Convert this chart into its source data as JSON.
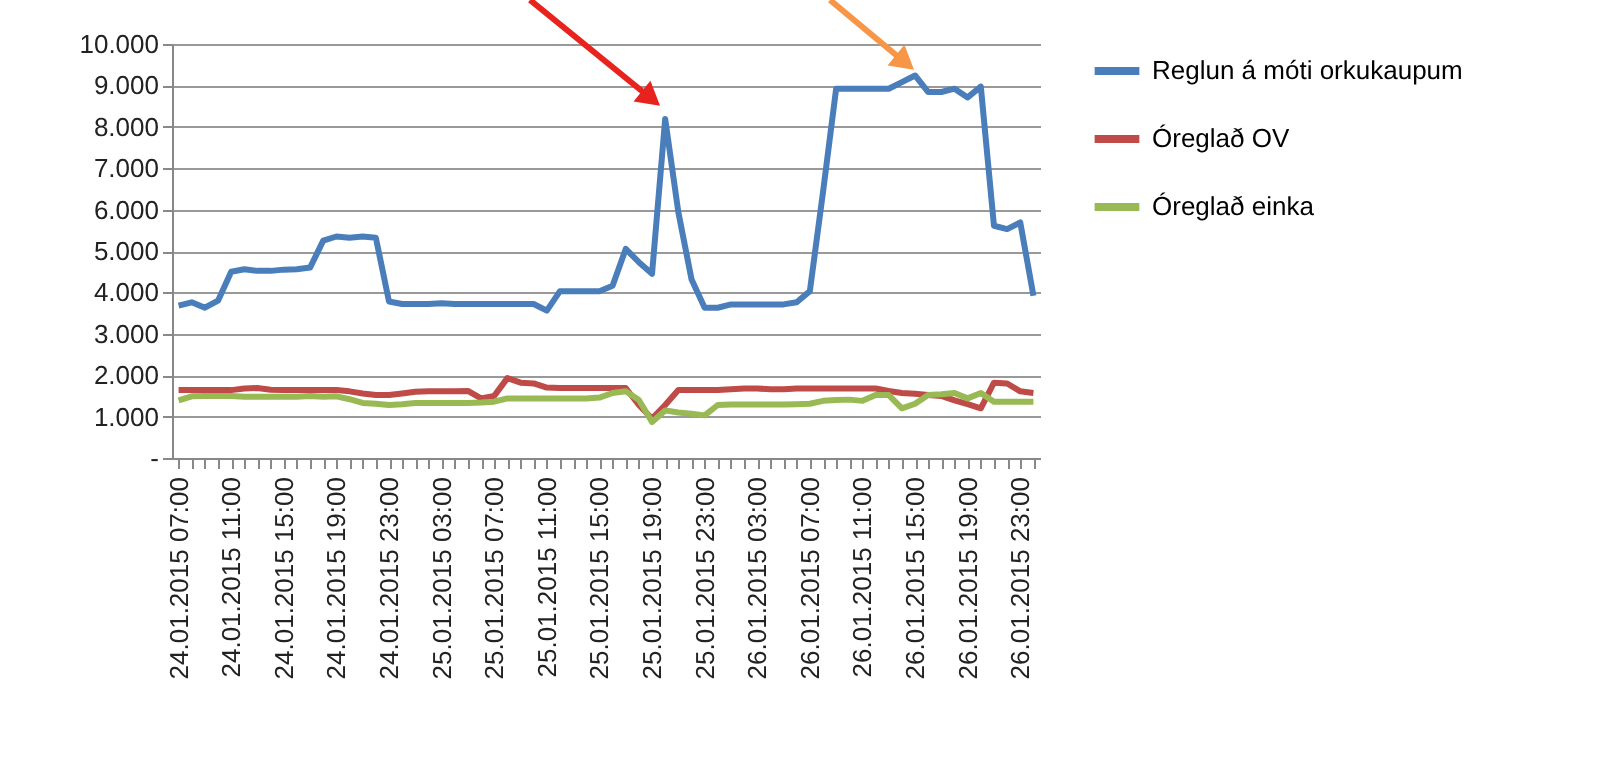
{
  "chart_data": {
    "type": "line",
    "categories": [
      "24.01.2015 07:00",
      null,
      null,
      null,
      "24.01.2015 11:00",
      null,
      null,
      null,
      "24.01.2015 15:00",
      null,
      null,
      null,
      "24.01.2015 19:00",
      null,
      null,
      null,
      "24.01.2015 23:00",
      null,
      null,
      null,
      "25.01.2015 03:00",
      null,
      null,
      null,
      "25.01.2015 07:00",
      null,
      null,
      null,
      "25.01.2015 11:00",
      null,
      null,
      null,
      "25.01.2015 15:00",
      null,
      null,
      null,
      "25.01.2015 19:00",
      null,
      null,
      null,
      "25.01.2015 23:00",
      null,
      null,
      null,
      "26.01.2015 03:00",
      null,
      null,
      null,
      "26.01.2015 07:00",
      null,
      null,
      null,
      "26.01.2015 11:00",
      null,
      null,
      null,
      "26.01.2015 15:00",
      null,
      null,
      null,
      "26.01.2015 19:00",
      null,
      null,
      null,
      "26.01.2015 23:00",
      null
    ],
    "series": [
      {
        "name": "Reglun á móti orkukaupum",
        "color": "#4a7ebb",
        "values": [
          3680,
          3760,
          3630,
          3800,
          4500,
          4560,
          4520,
          4520,
          4550,
          4560,
          4600,
          5250,
          5350,
          5320,
          5350,
          5320,
          3780,
          3720,
          3720,
          3720,
          3740,
          3720,
          3720,
          3720,
          3720,
          3720,
          3720,
          3720,
          3560,
          4030,
          4030,
          4030,
          4030,
          4160,
          5050,
          4730,
          4450,
          8190,
          5940,
          4320,
          3630,
          3630,
          3710,
          3710,
          3710,
          3710,
          3710,
          3760,
          4030,
          6420,
          8920,
          8920,
          8920,
          8920,
          8920,
          9080,
          9240,
          8840,
          8840,
          8920,
          8710,
          8970,
          5610,
          5530,
          5690,
          3920
        ]
      },
      {
        "name": "Óreglað OV",
        "color": "#be4b48",
        "values": [
          1640,
          1640,
          1640,
          1640,
          1640,
          1680,
          1690,
          1650,
          1640,
          1640,
          1640,
          1640,
          1640,
          1610,
          1560,
          1520,
          1520,
          1560,
          1600,
          1610,
          1610,
          1610,
          1620,
          1440,
          1500,
          1930,
          1820,
          1800,
          1700,
          1690,
          1690,
          1690,
          1690,
          1690,
          1690,
          1280,
          950,
          1280,
          1640,
          1640,
          1640,
          1640,
          1660,
          1680,
          1680,
          1660,
          1660,
          1680,
          1680,
          1680,
          1680,
          1680,
          1680,
          1680,
          1620,
          1570,
          1550,
          1520,
          1500,
          1390,
          1300,
          1200,
          1820,
          1800,
          1610,
          1570
        ]
      },
      {
        "name": "Óreglað einka",
        "color": "#98b954",
        "values": [
          1390,
          1490,
          1500,
          1500,
          1500,
          1480,
          1480,
          1480,
          1480,
          1480,
          1500,
          1480,
          1490,
          1420,
          1330,
          1310,
          1280,
          1300,
          1330,
          1330,
          1330,
          1330,
          1330,
          1340,
          1360,
          1440,
          1440,
          1440,
          1440,
          1440,
          1440,
          1440,
          1460,
          1570,
          1610,
          1400,
          870,
          1150,
          1100,
          1070,
          1030,
          1280,
          1290,
          1290,
          1290,
          1290,
          1290,
          1300,
          1310,
          1380,
          1400,
          1410,
          1380,
          1520,
          1520,
          1200,
          1310,
          1520,
          1540,
          1570,
          1440,
          1570,
          1360,
          1360,
          1360,
          1360
        ]
      }
    ],
    "ylim": [
      0,
      10000
    ],
    "yticks": [
      {
        "value": 0,
        "label": "-"
      },
      {
        "value": 1000,
        "label": "1.000"
      },
      {
        "value": 2000,
        "label": "2.000"
      },
      {
        "value": 3000,
        "label": "3.000"
      },
      {
        "value": 4000,
        "label": "4.000"
      },
      {
        "value": 5000,
        "label": "5.000"
      },
      {
        "value": 6000,
        "label": "6.000"
      },
      {
        "value": 7000,
        "label": "7.000"
      },
      {
        "value": 8000,
        "label": "8.000"
      },
      {
        "value": 9000,
        "label": "9.000"
      },
      {
        "value": 10000,
        "label": "10.000"
      }
    ],
    "grid": "y",
    "legend": "right",
    "marker": "none",
    "line_style": "solid"
  }
}
